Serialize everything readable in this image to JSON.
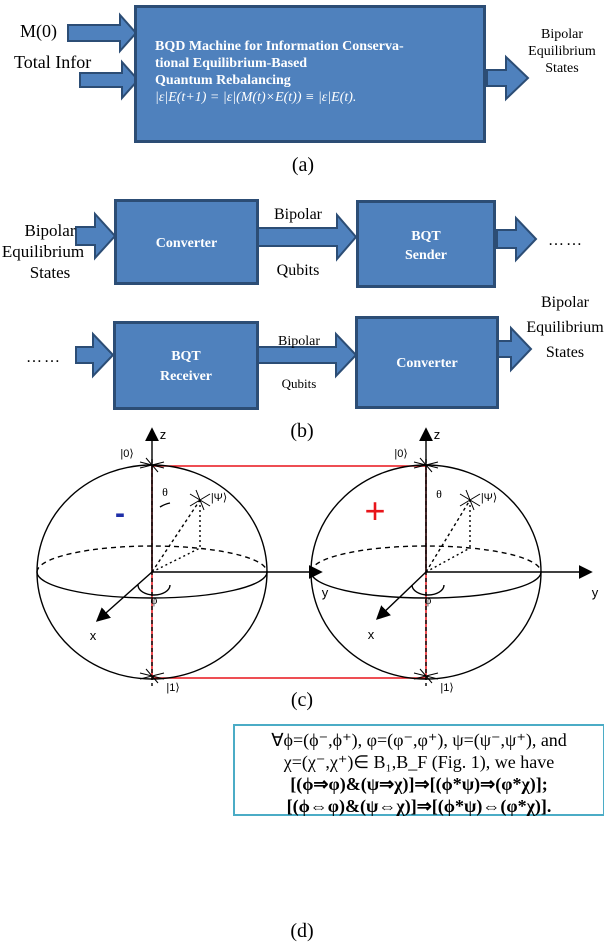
{
  "panel_a": {
    "input_top": "M(0)",
    "input_bottom": "Total Infor",
    "box_line1": "BQD Machine for Information Conserva-",
    "box_line2": "tional Equilibrium-Based",
    "box_line3": "Quantum Rebalancing",
    "box_formula": "|ε|E(t+1) = |ε|(M(t)×E(t)) ≡ |ε|E(t).",
    "output_line1": "Bipolar",
    "output_line2": "Equilibrium",
    "output_line3": "States",
    "caption": "(a)"
  },
  "panel_b": {
    "input_line1": "Bipolar",
    "input_line2": "Equilibrium",
    "input_line3": "States",
    "converter1": "Converter",
    "link1_top": "Bipolar",
    "link1_bottom": "Qubits",
    "sender_line1": "BQT",
    "sender_line2": "Sender",
    "dots_right": "……",
    "dots_left": "……",
    "receiver_line1": "BQT",
    "receiver_line2": "Receiver",
    "link2_top": "Bipolar",
    "link2_bottom": "Qubits",
    "converter2": "Converter",
    "output_line1": "Bipolar",
    "output_line2": "Equilibrium",
    "output_line3": "States",
    "caption": "(b)"
  },
  "panel_c": {
    "left_sign": "-",
    "right_sign": "+",
    "z_label": "z",
    "y_label": "y",
    "x_label": "x",
    "theta": "θ",
    "phi": "φ",
    "ket0": "|0⟩",
    "ket1": "|1⟩",
    "ketpsi": "|Ψ⟩",
    "caption": "(c)"
  },
  "panel_d": {
    "line1": "∀ϕ=(ϕ⁻,ϕ⁺), φ=(φ⁻,φ⁺), ψ=(ψ⁻,ψ⁺), and",
    "line2": "χ=(χ⁻,χ⁺)∈ B₁,B_F (Fig. 1), we have",
    "line3": "[(ϕ⇒φ)&(ψ⇒χ)]⇒[(ϕ*ψ)⇒(φ*χ)];",
    "line4": "[(ϕ⇔φ)&(ψ⇔χ)]⇒[(ϕ*ψ)⇔(φ*χ)].",
    "caption": "(d)"
  },
  "colors": {
    "box_fill": "#4f81bd",
    "box_border": "#2c4d75",
    "red": "#e8141a",
    "blue": "#1f2fa8",
    "frame": "#4bacc6"
  }
}
